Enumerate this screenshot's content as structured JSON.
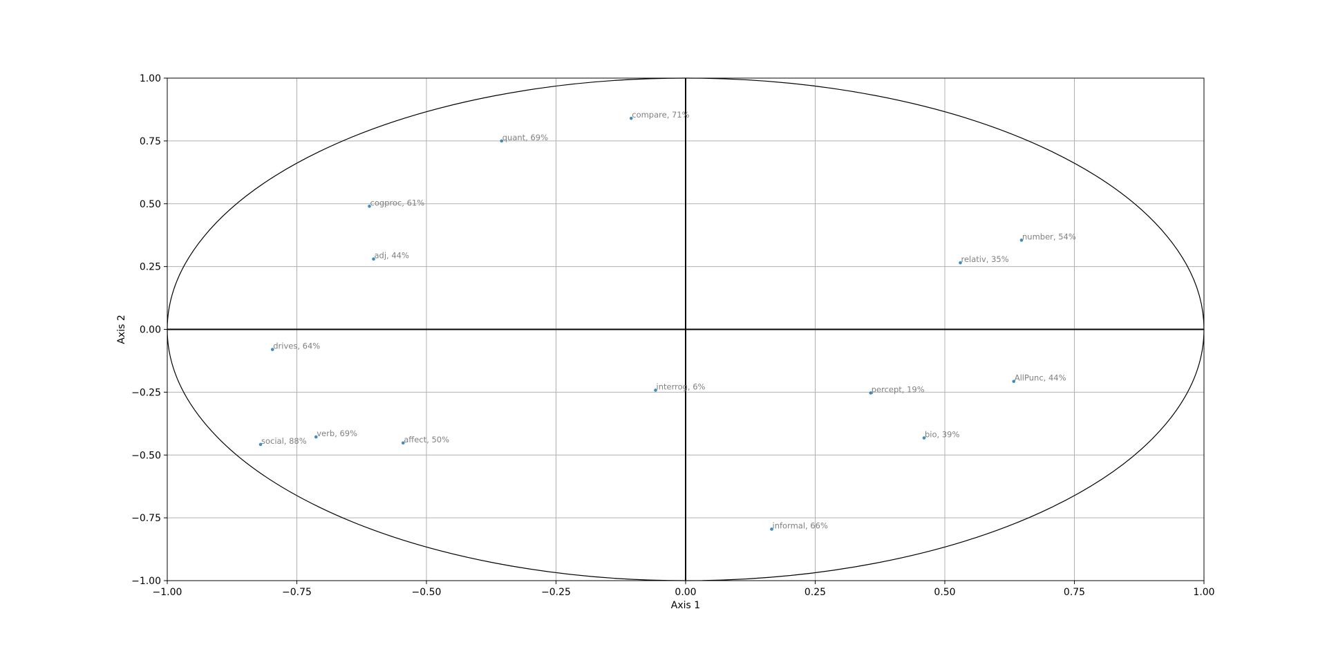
{
  "chart_data": {
    "type": "scatter",
    "xlabel": "Axis 1",
    "ylabel": "Axis 2",
    "xlim": [
      -1.0,
      1.0
    ],
    "ylim": [
      -1.0,
      1.0
    ],
    "grid": true,
    "x_ticks": [
      "−1.00",
      "−0.75",
      "−0.50",
      "−0.25",
      "0.00",
      "0.25",
      "0.50",
      "0.75",
      "1.00"
    ],
    "y_ticks": [
      "1.00",
      "0.75",
      "0.50",
      "0.25",
      "0.00",
      "−0.25",
      "−0.50",
      "−0.75",
      "−1.00"
    ],
    "x_tick_values": [
      -1.0,
      -0.75,
      -0.5,
      -0.25,
      0.0,
      0.25,
      0.5,
      0.75,
      1.0
    ],
    "y_tick_values": [
      1.0,
      0.75,
      0.5,
      0.25,
      0.0,
      -0.25,
      -0.5,
      -0.75,
      -1.0
    ],
    "unit_circle": true,
    "point_color": "#1f77b4",
    "label_color": "#808080",
    "points": [
      {
        "label": "compare, 71%",
        "x": -0.105,
        "y": 0.84
      },
      {
        "label": "quant, 69%",
        "x": -0.355,
        "y": 0.75
      },
      {
        "label": "cogproc, 61%",
        "x": -0.61,
        "y": 0.49
      },
      {
        "label": "adj, 44%",
        "x": -0.602,
        "y": 0.28
      },
      {
        "label": "number, 54%",
        "x": 0.648,
        "y": 0.355
      },
      {
        "label": "relativ, 35%",
        "x": 0.53,
        "y": 0.265
      },
      {
        "label": "drives, 64%",
        "x": -0.797,
        "y": -0.08
      },
      {
        "label": "interrog, 6%",
        "x": -0.058,
        "y": -0.242
      },
      {
        "label": "percept, 19%",
        "x": 0.357,
        "y": -0.253
      },
      {
        "label": "AllPunc, 44%",
        "x": 0.633,
        "y": -0.207
      },
      {
        "label": "social, 88%",
        "x": -0.82,
        "y": -0.458
      },
      {
        "label": "verb, 69%",
        "x": -0.713,
        "y": -0.428
      },
      {
        "label": "affect, 50%",
        "x": -0.545,
        "y": -0.452
      },
      {
        "label": "bio, 39%",
        "x": 0.46,
        "y": -0.432
      },
      {
        "label": "informal, 66%",
        "x": 0.166,
        "y": -0.795
      }
    ]
  }
}
